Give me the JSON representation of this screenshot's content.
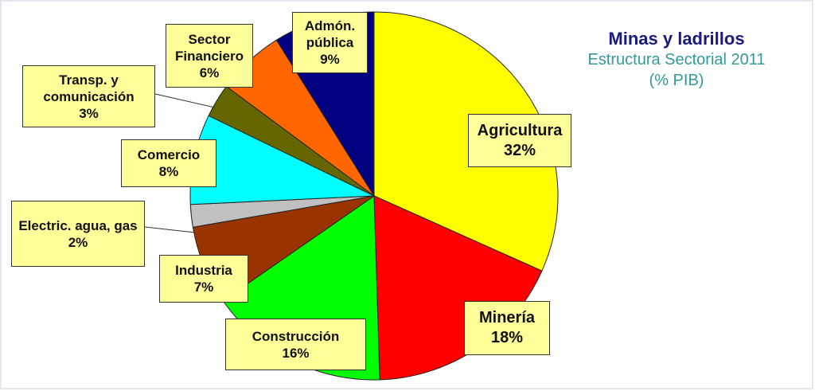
{
  "chart_data": {
    "type": "pie",
    "title": "Minas y ladrillos",
    "subtitle": "Estructura Sectorial 2011",
    "unit_label": "(% PIB)",
    "categories": [
      "Agricultura",
      "Minería",
      "Construcción",
      "Industria",
      "Electric. agua, gas",
      "Comercio",
      "Transp. y comunicación",
      "Sector Financiero",
      "Admón. pública"
    ],
    "values": [
      32,
      18,
      16,
      7,
      2,
      8,
      3,
      6,
      9
    ],
    "value_labels": [
      "32%",
      "18%",
      "16%",
      "7%",
      "2%",
      "8%",
      "3%",
      "6%",
      "9%"
    ],
    "colors": [
      "#ffff00",
      "#ff0000",
      "#00ff00",
      "#993300",
      "#c0c0c0",
      "#00ffff",
      "#666600",
      "#ff6600",
      "#000080"
    ]
  }
}
